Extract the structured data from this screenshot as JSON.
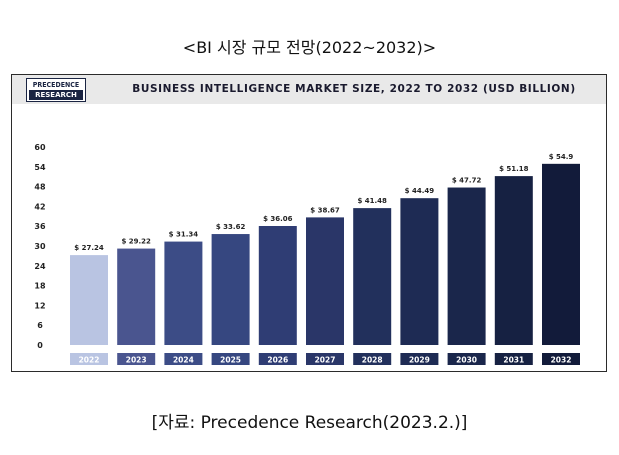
{
  "page_title": "<BI 시장 규모 전망(2022~2032)>",
  "logo": {
    "line1": "PRECEDENCE",
    "line2": "RESEARCH"
  },
  "source": "[자료: Precedence Research(2023.2.)]",
  "colors": [
    "#b9c4e2",
    "#4a558f",
    "#3c4c86",
    "#364780",
    "#2f3d74",
    "#2a3668",
    "#22305c",
    "#1e2b54",
    "#1a264b",
    "#162142",
    "#121b3a"
  ],
  "chart_data": {
    "type": "bar",
    "title": "BUSINESS INTELLIGENCE MARKET SIZE, 2022 TO 2032 (USD BILLION)",
    "categories": [
      "2022",
      "2023",
      "2024",
      "2025",
      "2026",
      "2027",
      "2028",
      "2029",
      "2030",
      "2031",
      "2032"
    ],
    "values": [
      27.24,
      29.22,
      31.34,
      33.62,
      36.06,
      38.67,
      41.48,
      44.49,
      47.72,
      51.18,
      54.9
    ],
    "value_labels": [
      "$ 27.24",
      "$ 29.22",
      "$ 31.34",
      "$ 33.62",
      "$ 36.06",
      "$ 38.67",
      "$ 41.48",
      "$ 44.49",
      "$ 47.72",
      "$ 51.18",
      "$ 54.9"
    ],
    "yticks": [
      0,
      6,
      12,
      18,
      24,
      30,
      36,
      42,
      48,
      54,
      60
    ],
    "ylim": [
      0,
      60
    ],
    "grid": false,
    "legend": "none"
  }
}
